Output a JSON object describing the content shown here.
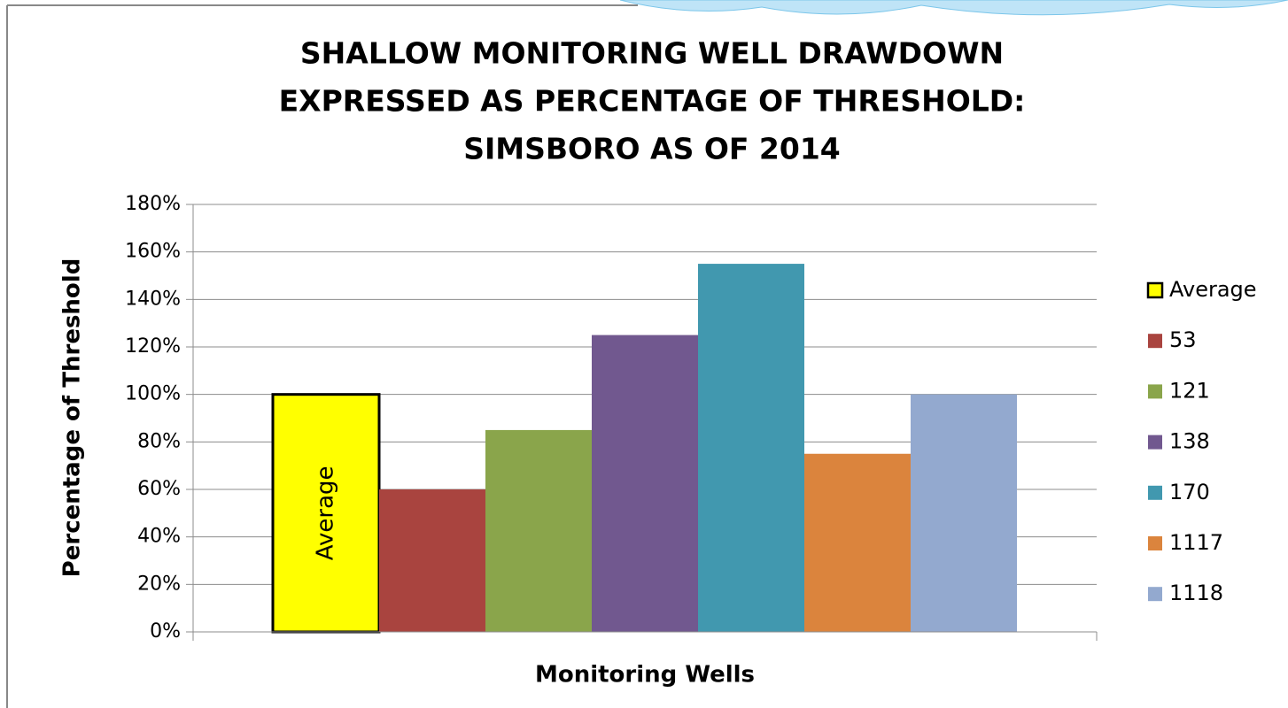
{
  "chart_data": {
    "type": "bar",
    "title": [
      "SHALLOW MONITORING WELL DRAWDOWN",
      "EXPRESSED AS PERCENTAGE OF THRESHOLD:",
      "SIMSBORO AS OF 2014"
    ],
    "x_label": "Monitoring Wells",
    "y_label": "Percentage of Threshold",
    "categories": [
      null
    ],
    "series": [
      {
        "name": "Average",
        "color": "#ffff00",
        "values": [
          100
        ]
      },
      {
        "name": "53",
        "color": "#a9443f",
        "values": [
          60
        ]
      },
      {
        "name": "121",
        "color": "#8aa54b",
        "values": [
          85
        ]
      },
      {
        "name": "138",
        "color": "#71588f",
        "values": [
          125
        ]
      },
      {
        "name": "170",
        "color": "#4198af",
        "values": [
          155
        ]
      },
      {
        "name": "1117",
        "color": "#db843d",
        "values": [
          75
        ]
      },
      {
        "name": "1118",
        "color": "#93a9cf",
        "values": [
          100
        ]
      }
    ],
    "ylim": [
      0,
      180
    ],
    "yticks": [
      {
        "value": 0,
        "label": "0%"
      },
      {
        "value": 20,
        "label": "20%"
      },
      {
        "value": 40,
        "label": "40%"
      },
      {
        "value": 60,
        "label": "60%"
      },
      {
        "value": 80,
        "label": "80%"
      },
      {
        "value": 100,
        "label": "100%"
      },
      {
        "value": 120,
        "label": "120%"
      },
      {
        "value": 140,
        "label": "140%"
      },
      {
        "value": 160,
        "label": "160%"
      },
      {
        "value": 180,
        "label": "180%"
      }
    ],
    "grid": true,
    "legend": "right"
  }
}
